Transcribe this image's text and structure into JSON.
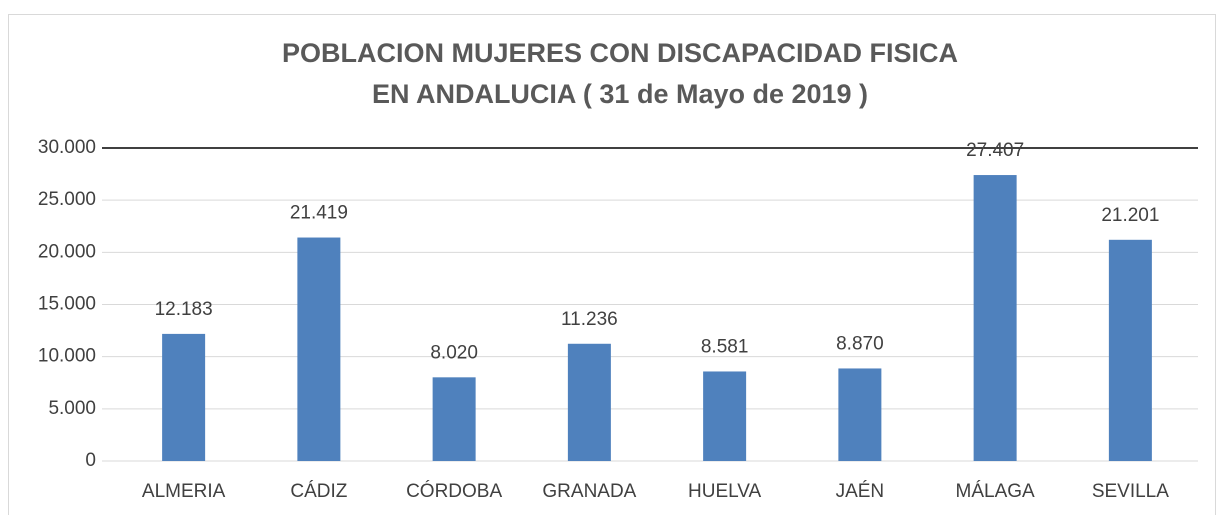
{
  "chart_data": {
    "type": "bar",
    "title": [
      "POBLACION MUJERES CON DISCAPACIDAD FISICA",
      "EN ANDALUCIA ( 31 de Mayo de 2019 )"
    ],
    "categories": [
      "ALMERIA",
      "CÁDIZ",
      "CÓRDOBA",
      "GRANADA",
      "HUELVA",
      "JAÉN",
      "MÁLAGA",
      "SEVILLA"
    ],
    "values": [
      12183,
      21419,
      8020,
      11236,
      8581,
      8870,
      27407,
      21201
    ],
    "value_labels": [
      "12.183",
      "21.419",
      "8.020",
      "11.236",
      "8.581",
      "8.870",
      "27.407",
      "21.201"
    ],
    "color": "#4f81bd",
    "ylim": [
      0,
      30000
    ],
    "yticks": [
      {
        "value": 0,
        "label": "0"
      },
      {
        "value": 5000,
        "label": "5.000"
      },
      {
        "value": 10000,
        "label": "10.000"
      },
      {
        "value": 15000,
        "label": "15.000"
      },
      {
        "value": 20000,
        "label": "20.000"
      },
      {
        "value": 25000,
        "label": "25.000"
      },
      {
        "value": 30000,
        "label": "30.000"
      }
    ],
    "grid": true
  }
}
